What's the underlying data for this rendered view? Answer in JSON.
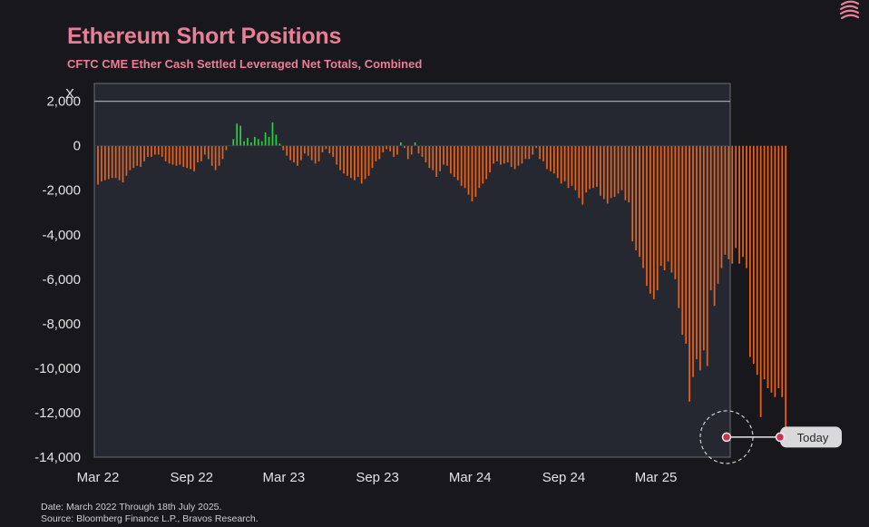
{
  "chart_data": {
    "type": "bar",
    "title": "Ethereum Short Positions",
    "subtitle": "CFTC CME Ether Cash Settled Leveraged Net Totals, Combined",
    "ylabel": "X",
    "ylim": [
      -14000,
      2800
    ],
    "yticks": [
      2000,
      0,
      -2000,
      -4000,
      -6000,
      -8000,
      -10000,
      -12000,
      -14000
    ],
    "ytick_labels": [
      "2,000",
      "0",
      "-2,000",
      "-4,000",
      "-6,000",
      "-8,000",
      "-10,000",
      "-12,000",
      "-14,000"
    ],
    "xlim": [
      "2022-03-01",
      "2025-07-25"
    ],
    "xticks": [
      "2022-03-01",
      "2022-09-01",
      "2023-03-01",
      "2023-09-01",
      "2024-03-01",
      "2024-09-01",
      "2025-03-01"
    ],
    "xtick_labels": [
      "Mar 22",
      "Sep 22",
      "Mar 23",
      "Sep 23",
      "Mar 24",
      "Sep 24",
      "Mar 25"
    ],
    "grid": false,
    "reference_line": 2000,
    "positive_color": "#2ecc40",
    "negative_color": "#e8611c",
    "annotation": {
      "label": "Today",
      "date": "2025-07-18",
      "value": -13100
    },
    "series": [
      {
        "start_date": "2022-03-01",
        "interval": "weekly",
        "values": [
          -1750,
          -1600,
          -1550,
          -1500,
          -1450,
          -1450,
          -1550,
          -1650,
          -1350,
          -1100,
          -1000,
          -900,
          -950,
          -700,
          -500,
          -500,
          -400,
          -400,
          -500,
          -700,
          -800,
          -850,
          -900,
          -850,
          -950,
          -1000,
          -1050,
          -1150,
          -750,
          -700,
          -400,
          -600,
          -900,
          -1100,
          -900,
          -600,
          -200,
          0,
          300,
          1000,
          900,
          200,
          350,
          150,
          400,
          300,
          200,
          600,
          400,
          1050,
          500,
          100,
          -200,
          -450,
          -650,
          -750,
          -900,
          -650,
          -350,
          -450,
          -650,
          -800,
          -700,
          -300,
          -150,
          -350,
          -500,
          -850,
          -1100,
          -1250,
          -1350,
          -1450,
          -1550,
          -1400,
          -1700,
          -1500,
          -1350,
          -1000,
          -700,
          -600,
          -300,
          -150,
          -250,
          -500,
          -400,
          150,
          -100,
          -600,
          -400,
          150,
          -350,
          -500,
          -750,
          -1000,
          -1100,
          -1400,
          -1150,
          -850,
          -900,
          -1250,
          -1400,
          -1550,
          -1800,
          -1900,
          -2200,
          -2500,
          -2300,
          -1900,
          -1700,
          -1500,
          -1200,
          -800,
          -700,
          -850,
          -800,
          -750,
          -950,
          -1050,
          -900,
          -800,
          -600,
          -600,
          -400,
          -100,
          -600,
          -700,
          -1050,
          -1150,
          -1250,
          -1450,
          -1700,
          -1600,
          -1900,
          -1800,
          -2000,
          -2350,
          -2650,
          -2100,
          -1950,
          -1900,
          -1850,
          -2250,
          -2400,
          -2600,
          -2350,
          -2300,
          -2150,
          -2000,
          -2450,
          -2550,
          -4300,
          -4700,
          -5000,
          -5500,
          -6300,
          -6650,
          -6900,
          -6500,
          -5400,
          -5600,
          -5200,
          -5700,
          -6000,
          -7300,
          -8500,
          -8900,
          -11500,
          -10400,
          -9600,
          -10100,
          -9200,
          -9900,
          -6500,
          -7200,
          -6200,
          -5500,
          -4900,
          -5100,
          -5300,
          -4600,
          -5300,
          -5000,
          -5500,
          -9500,
          -9800,
          -10300,
          -12200,
          -10500,
          -10900,
          -11100,
          -11300,
          -10900,
          -11300,
          -13100
        ]
      }
    ]
  },
  "footer": {
    "date_line": "Date: March 2022 Through 18th July 2025.",
    "source_line": "Source: Bloomberg Finance L.P., Bravos Research."
  },
  "logo_icon": "stacked-coins-icon"
}
